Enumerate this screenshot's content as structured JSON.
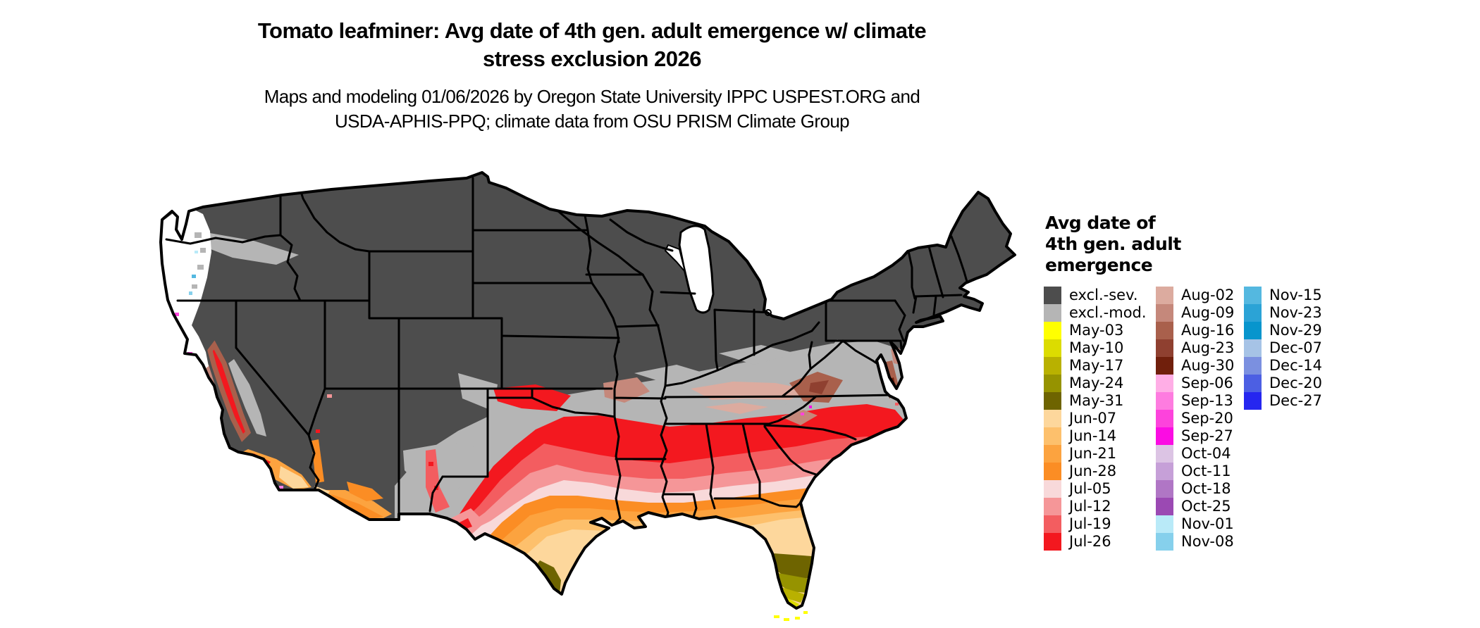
{
  "title": {
    "line1": "Tomato leafminer: Avg date of 4th gen. adult emergence w/ climate",
    "line2": "stress exclusion 2026"
  },
  "subtitle": {
    "line1": "Maps and modeling 01/06/2026 by Oregon State University IPPC USPEST.ORG and",
    "line2": "USDA-APHIS-PPQ; climate data from OSU PRISM Climate Group"
  },
  "legend": {
    "title_lines": [
      "Avg date of",
      "4th gen. adult",
      "emergence"
    ],
    "columns": [
      {
        "entries": [
          {
            "label": "excl.-sev.",
            "color": "#4d4d4d"
          },
          {
            "label": "excl.-mod.",
            "color": "#b5b5b5"
          },
          {
            "label": "May-03",
            "color": "#ffff00"
          },
          {
            "label": "May-10",
            "color": "#dcdc00"
          },
          {
            "label": "May-17",
            "color": "#b9b100"
          },
          {
            "label": "May-24",
            "color": "#969300"
          },
          {
            "label": "May-31",
            "color": "#6e6400"
          },
          {
            "label": "Jun-07",
            "color": "#fdd79c"
          },
          {
            "label": "Jun-14",
            "color": "#fdc06c"
          },
          {
            "label": "Jun-21",
            "color": "#fca33f"
          },
          {
            "label": "Jun-28",
            "color": "#fb8d24"
          },
          {
            "label": "Jul-05",
            "color": "#f8d9da"
          },
          {
            "label": "Jul-12",
            "color": "#f59698"
          },
          {
            "label": "Jul-19",
            "color": "#f35d60"
          },
          {
            "label": "Jul-26",
            "color": "#f3181f"
          }
        ]
      },
      {
        "entries": [
          {
            "label": "Aug-02",
            "color": "#dcab9f"
          },
          {
            "label": "Aug-09",
            "color": "#c5887b"
          },
          {
            "label": "Aug-16",
            "color": "#a9604c"
          },
          {
            "label": "Aug-23",
            "color": "#8f4030"
          },
          {
            "label": "Aug-30",
            "color": "#701f0c"
          },
          {
            "label": "Sep-06",
            "color": "#ffaee6"
          },
          {
            "label": "Sep-13",
            "color": "#fe7ce0"
          },
          {
            "label": "Sep-20",
            "color": "#fd43dc"
          },
          {
            "label": "Sep-27",
            "color": "#fb0ce3"
          },
          {
            "label": "Oct-04",
            "color": "#dcc4e4"
          },
          {
            "label": "Oct-11",
            "color": "#c6a0d8"
          },
          {
            "label": "Oct-18",
            "color": "#b076c5"
          },
          {
            "label": "Oct-25",
            "color": "#9b49b3"
          },
          {
            "label": "Nov-01",
            "color": "#b9eaf8"
          },
          {
            "label": "Nov-08",
            "color": "#86d0ec"
          }
        ]
      },
      {
        "entries": [
          {
            "label": "Nov-15",
            "color": "#54b8e0"
          },
          {
            "label": "Nov-23",
            "color": "#2ba3d6"
          },
          {
            "label": "Nov-29",
            "color": "#0795cd"
          },
          {
            "label": "Dec-07",
            "color": "#a6c3e6"
          },
          {
            "label": "Dec-14",
            "color": "#7b90e0"
          },
          {
            "label": "Dec-20",
            "color": "#4c5fe3"
          },
          {
            "label": "Dec-27",
            "color": "#2526f0"
          }
        ]
      }
    ]
  },
  "map": {
    "colors": {
      "excl_sev": "#4d4d4d",
      "excl_mod": "#b5b5b5",
      "may03": "#ffff00",
      "may10": "#dcdc00",
      "may17": "#b9b100",
      "may24": "#969300",
      "may31": "#6e6400",
      "jun07": "#fdd79c",
      "jun14": "#fdc06c",
      "jun21": "#fca33f",
      "jun28": "#fb8d24",
      "jul05": "#f8d9da",
      "jul12": "#f59698",
      "jul19": "#f35d60",
      "jul26": "#f3181f",
      "aug02": "#dcab9f",
      "aug09": "#c5887b",
      "aug16": "#a9604c",
      "aug23": "#8f4030",
      "aug30": "#701f0c",
      "sep06": "#ffaee6",
      "sep13": "#fe7ce0",
      "sep20": "#fd43dc",
      "sep27": "#fb0ce3",
      "oct11": "#c6a0d8",
      "oct18": "#b076c5",
      "nov01": "#b9eaf8",
      "nov08": "#86d0ec",
      "nov15": "#54b8e0"
    }
  }
}
